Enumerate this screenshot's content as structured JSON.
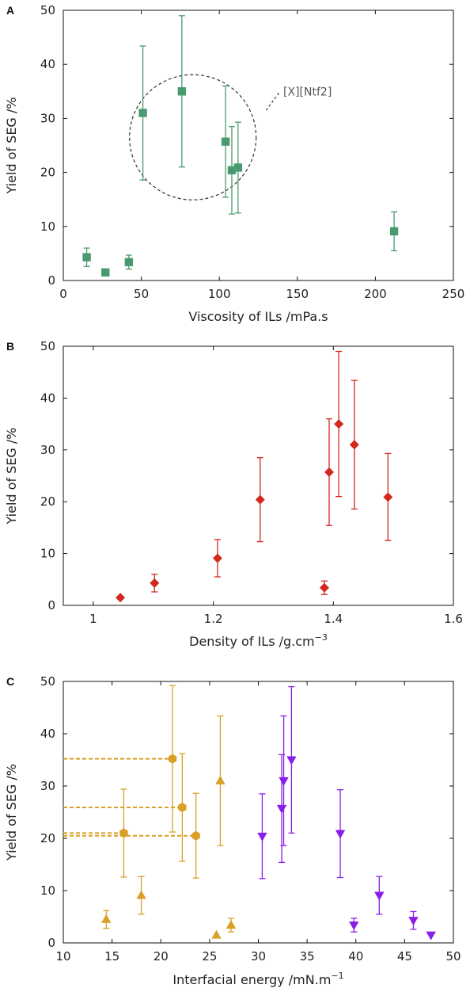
{
  "chart_data": [
    {
      "panel": "A",
      "type": "scatter",
      "xlabel": "Viscosity of ILs /mPa.s",
      "ylabel": "Yield of SEG /%",
      "xlim": [
        0,
        250
      ],
      "ylim": [
        0,
        50
      ],
      "xticks": [
        0,
        50,
        100,
        150,
        200,
        250
      ],
      "yticks": [
        0,
        10,
        20,
        30,
        40,
        50
      ],
      "grid": false,
      "annotation": "[X][Ntf2]",
      "series": [
        {
          "color": "#4a9a70",
          "marker": "square",
          "points": [
            {
              "x": 15,
              "y": 4.3,
              "err": 1.7
            },
            {
              "x": 27,
              "y": 1.5,
              "err": 0.3
            },
            {
              "x": 42,
              "y": 3.4,
              "err": 1.3
            },
            {
              "x": 51,
              "y": 31,
              "err": 12.4
            },
            {
              "x": 76,
              "y": 35,
              "err": 14
            },
            {
              "x": 104,
              "y": 25.7,
              "err": 10.3
            },
            {
              "x": 108,
              "y": 20.4,
              "err": 8.1
            },
            {
              "x": 112,
              "y": 20.9,
              "err": 8.4
            },
            {
              "x": 212,
              "y": 9.1,
              "err": 3.6
            }
          ]
        }
      ]
    },
    {
      "panel": "B",
      "type": "scatter",
      "xlabel": "Density of ILs /g.cm",
      "xlabel_sup": "−3",
      "ylabel": "Yield of SEG /%",
      "xlim": [
        0.95,
        1.6
      ],
      "ylim": [
        0,
        50
      ],
      "xticks": [
        "1",
        "1.2",
        "1.4",
        "1.6"
      ],
      "yticks": [
        0,
        10,
        20,
        30,
        40,
        50
      ],
      "grid": false,
      "series": [
        {
          "color": "#d2281e",
          "marker": "diamond",
          "points": [
            {
              "x": 1.045,
              "y": 1.5,
              "err": 0
            },
            {
              "x": 1.102,
              "y": 4.3,
              "err": 1.7
            },
            {
              "x": 1.207,
              "y": 9.1,
              "err": 3.6
            },
            {
              "x": 1.278,
              "y": 20.4,
              "err": 8.1
            },
            {
              "x": 1.385,
              "y": 3.4,
              "err": 1.3
            },
            {
              "x": 1.393,
              "y": 25.7,
              "err": 10.3
            },
            {
              "x": 1.409,
              "y": 35,
              "err": 14
            },
            {
              "x": 1.435,
              "y": 31,
              "err": 12.4
            },
            {
              "x": 1.491,
              "y": 20.9,
              "err": 8.4
            }
          ]
        }
      ]
    },
    {
      "panel": "C",
      "type": "scatter",
      "xlabel": "Interfacial energy /mN.m",
      "xlabel_sup": "−1",
      "ylabel": "Yield of SEG /%",
      "xlim": [
        10,
        50
      ],
      "ylim": [
        0,
        50
      ],
      "xticks": [
        10,
        15,
        20,
        25,
        30,
        35,
        40,
        45,
        50
      ],
      "yticks": [
        0,
        10,
        20,
        30,
        40,
        50
      ],
      "grid": false,
      "series": [
        {
          "color": "#d9a025",
          "marker": "triangle-up",
          "points": [
            {
              "x": 14.4,
              "y": 4.5,
              "err": 1.7
            },
            {
              "x": 18,
              "y": 9.1,
              "err": 3.6
            },
            {
              "x": 25.7,
              "y": 1.5,
              "err": 0
            },
            {
              "x": 26.1,
              "y": 31,
              "err": 12.4
            },
            {
              "x": 27.2,
              "y": 3.4,
              "err": 1.3
            }
          ]
        },
        {
          "color": "#d9a025",
          "marker": "hexagon",
          "dashed_guide": true,
          "points": [
            {
              "x": 16.2,
              "y": 21,
              "err": 8.4
            },
            {
              "x": 21.2,
              "y": 35.2,
              "err": 14
            },
            {
              "x": 22.2,
              "y": 25.9,
              "err": 10.3
            },
            {
              "x": 23.6,
              "y": 20.5,
              "err": 8.1
            }
          ]
        },
        {
          "color": "#8a1ee8",
          "marker": "triangle-down",
          "points": [
            {
              "x": 30.4,
              "y": 20.4,
              "err": 8.1
            },
            {
              "x": 32.4,
              "y": 25.7,
              "err": 10.3
            },
            {
              "x": 32.6,
              "y": 31,
              "err": 12.4
            },
            {
              "x": 33.4,
              "y": 35,
              "err": 14
            },
            {
              "x": 38.4,
              "y": 20.9,
              "err": 8.4
            },
            {
              "x": 39.8,
              "y": 3.4,
              "err": 1.3
            },
            {
              "x": 42.4,
              "y": 9.1,
              "err": 3.6
            },
            {
              "x": 45.9,
              "y": 4.3,
              "err": 1.7
            },
            {
              "x": 47.7,
              "y": 1.5,
              "err": 0
            }
          ]
        }
      ]
    }
  ]
}
